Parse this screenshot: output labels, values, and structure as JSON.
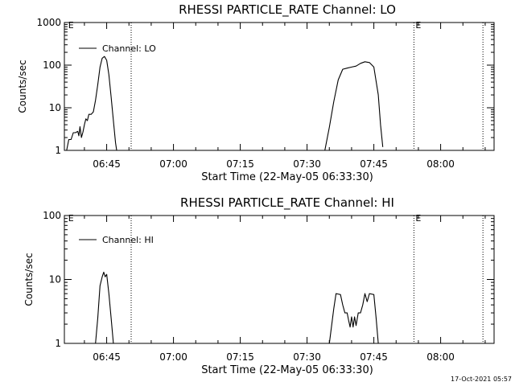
{
  "chart_data": [
    {
      "type": "line",
      "title": "RHESSI PARTICLE_RATE Channel: LO",
      "xlabel": "Start Time (22-May-05 06:33:30)",
      "ylabel": "Counts/sec",
      "xlim": [
        "06:35:30",
        "08:12:00"
      ],
      "ylim": [
        1,
        1000
      ],
      "yscale": "log",
      "grid": false,
      "legend": "top-left",
      "x_tick_labels": [
        "06:45",
        "07:00",
        "07:15",
        "07:30",
        "07:45",
        "08:00"
      ],
      "y_tick_labels": [
        "1",
        "10",
        "100",
        "1000"
      ],
      "markers": [
        {
          "x": "06:36:00",
          "label": "E",
          "style": "tick"
        },
        {
          "x": "06:50:30",
          "label": "",
          "style": "dotted"
        },
        {
          "x": "07:54:00",
          "label": "E",
          "style": "dotted"
        },
        {
          "x": "08:09:30",
          "label": "",
          "style": "dotted"
        }
      ],
      "series": [
        {
          "name": "Channel: LO",
          "segments": [
            [
              [
                "06:36:00",
                1.0
              ],
              [
                "06:36:30",
                1.8
              ],
              [
                "06:37:00",
                1.8
              ],
              [
                "06:37:30",
                2.6
              ],
              [
                "06:38:00",
                2.6
              ],
              [
                "06:38:30",
                2.8
              ],
              [
                "06:38:45",
                2.2
              ],
              [
                "06:39:00",
                3.6
              ],
              [
                "06:39:20",
                2.0
              ],
              [
                "06:39:40",
                2.7
              ],
              [
                "06:40:00",
                4.0
              ],
              [
                "06:40:20",
                5.5
              ],
              [
                "06:40:40",
                5.0
              ],
              [
                "06:41:00",
                7.0
              ],
              [
                "06:41:30",
                7.0
              ],
              [
                "06:42:00",
                8.0
              ],
              [
                "06:42:30",
                15
              ],
              [
                "06:43:00",
                35
              ],
              [
                "06:43:30",
                90
              ],
              [
                "06:44:00",
                145
              ],
              [
                "06:44:30",
                160
              ],
              [
                "06:45:00",
                130
              ],
              [
                "06:45:30",
                60
              ],
              [
                "06:46:00",
                18
              ],
              [
                "06:46:30",
                5
              ],
              [
                "06:47:00",
                1.5
              ],
              [
                "06:47:15",
                1.0
              ]
            ],
            [
              [
                "07:34:00",
                1.0
              ],
              [
                "07:35:00",
                3.5
              ],
              [
                "07:36:00",
                14
              ],
              [
                "07:37:00",
                45
              ],
              [
                "07:38:00",
                80
              ],
              [
                "07:39:00",
                85
              ],
              [
                "07:40:00",
                90
              ],
              [
                "07:41:00",
                95
              ],
              [
                "07:42:00",
                110
              ],
              [
                "07:43:00",
                120
              ],
              [
                "07:44:00",
                115
              ],
              [
                "07:45:00",
                90
              ],
              [
                "07:46:00",
                20
              ],
              [
                "07:46:30",
                4
              ],
              [
                "07:47:00",
                1.2
              ]
            ]
          ]
        }
      ]
    },
    {
      "type": "line",
      "title": "RHESSI PARTICLE_RATE Channel: HI",
      "xlabel": "Start Time (22-May-05 06:33:30)",
      "ylabel": "Counts/sec",
      "xlim": [
        "06:35:30",
        "08:12:00"
      ],
      "ylim": [
        1,
        100
      ],
      "yscale": "log",
      "grid": false,
      "legend": "top-left",
      "x_tick_labels": [
        "06:45",
        "07:00",
        "07:15",
        "07:30",
        "07:45",
        "08:00"
      ],
      "y_tick_labels": [
        "1",
        "10",
        "100"
      ],
      "markers": [
        {
          "x": "06:36:00",
          "label": "E",
          "style": "tick"
        },
        {
          "x": "06:50:30",
          "label": "",
          "style": "dotted"
        },
        {
          "x": "07:54:00",
          "label": "E",
          "style": "dotted"
        },
        {
          "x": "08:09:30",
          "label": "",
          "style": "dotted"
        }
      ],
      "series": [
        {
          "name": "Channel: HI",
          "segments": [
            [
              [
                "06:42:30",
                1.0
              ],
              [
                "06:43:00",
                2.5
              ],
              [
                "06:43:30",
                8
              ],
              [
                "06:44:00",
                11
              ],
              [
                "06:44:20",
                13
              ],
              [
                "06:44:40",
                11
              ],
              [
                "06:45:00",
                12
              ],
              [
                "06:45:30",
                6
              ],
              [
                "06:46:00",
                2.5
              ],
              [
                "06:46:30",
                1.0
              ]
            ],
            [
              [
                "07:35:00",
                1.0
              ],
              [
                "07:36:00",
                3.5
              ],
              [
                "07:36:30",
                6
              ],
              [
                "07:37:30",
                5.8
              ],
              [
                "07:38:00",
                4.0
              ],
              [
                "07:38:30",
                3.0
              ],
              [
                "07:39:00",
                3.0
              ],
              [
                "07:39:20",
                2.3
              ],
              [
                "07:39:40",
                1.8
              ],
              [
                "07:40:00",
                2.6
              ],
              [
                "07:40:20",
                1.8
              ],
              [
                "07:40:40",
                2.6
              ],
              [
                "07:41:00",
                1.9
              ],
              [
                "07:41:30",
                3.0
              ],
              [
                "07:42:00",
                3.0
              ],
              [
                "07:42:30",
                4.0
              ],
              [
                "07:43:00",
                6
              ],
              [
                "07:43:30",
                4.5
              ],
              [
                "07:44:00",
                6
              ],
              [
                "07:45:00",
                5.8
              ],
              [
                "07:45:30",
                2.5
              ],
              [
                "07:46:00",
                1.0
              ]
            ]
          ]
        }
      ]
    }
  ],
  "footer": {
    "timestamp": "17-Oct-2021 05:57"
  }
}
